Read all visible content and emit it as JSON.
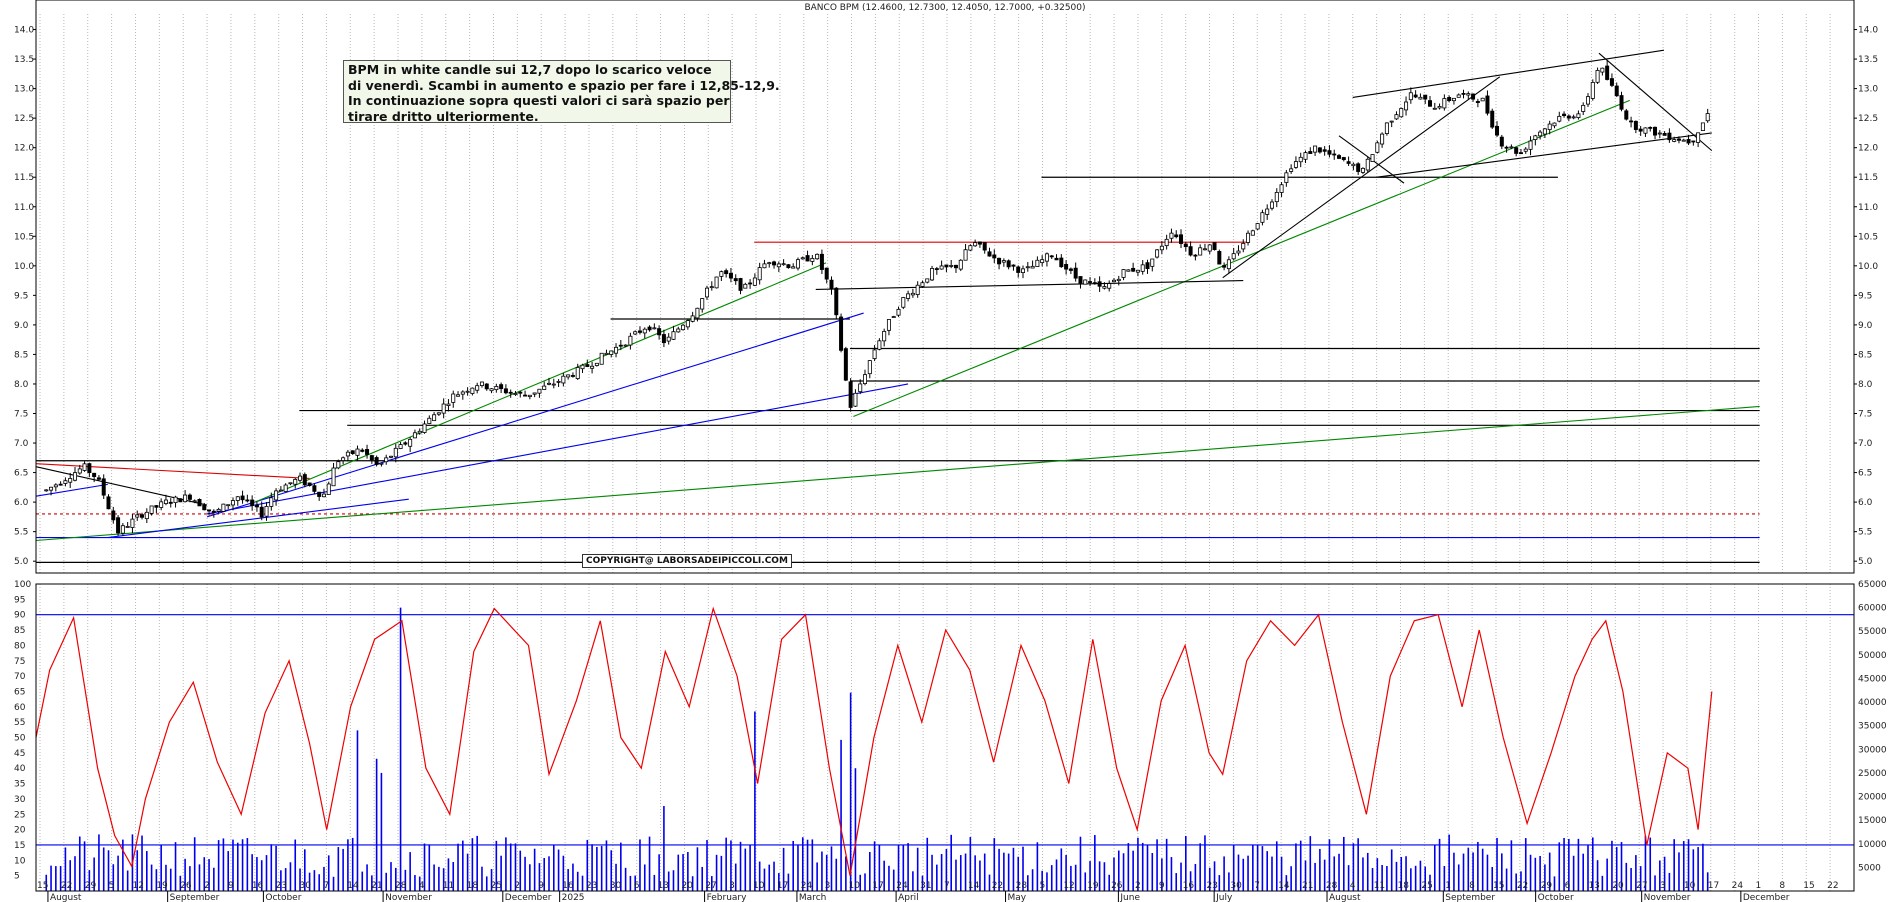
{
  "chart_data": [
    {
      "type": "candlestick",
      "title": "BANCO BPM (12.4600, 12.7300, 12.4050, 12.7000, +0.32500)",
      "ylim": [
        4.8,
        14.5
      ],
      "yticks": [
        "5.0",
        "5.5",
        "6.0",
        "6.5",
        "7.0",
        "7.5",
        "8.0",
        "8.5",
        "9.0",
        "9.5",
        "10.0",
        "10.5",
        "11.0",
        "11.5",
        "12.0",
        "12.5",
        "13.0",
        "13.5",
        "14.0"
      ],
      "grid": "vertical dotted",
      "price_path": [
        [
          "2024-08-15",
          6.2
        ],
        [
          "2024-08-26",
          6.6
        ],
        [
          "2024-08-30",
          6.4
        ],
        [
          "2024-09-05",
          5.5
        ],
        [
          "2024-09-12",
          5.8
        ],
        [
          "2024-09-19",
          6.0
        ],
        [
          "2024-09-26",
          6.1
        ],
        [
          "2024-10-03",
          5.8
        ],
        [
          "2024-10-10",
          6.1
        ],
        [
          "2024-10-17",
          5.8
        ],
        [
          "2024-10-21",
          6.2
        ],
        [
          "2024-10-28",
          6.4
        ],
        [
          "2024-11-04",
          6.1
        ],
        [
          "2024-11-08",
          6.7
        ],
        [
          "2024-11-15",
          6.9
        ],
        [
          "2024-11-20",
          6.6
        ],
        [
          "2024-11-28",
          7.0
        ],
        [
          "2024-12-05",
          7.4
        ],
        [
          "2024-12-12",
          7.8
        ],
        [
          "2024-12-19",
          8.0
        ],
        [
          "2025-01-02",
          7.8
        ],
        [
          "2025-01-10",
          8.0
        ],
        [
          "2025-01-20",
          8.3
        ],
        [
          "2025-01-31",
          8.7
        ],
        [
          "2025-02-07",
          9.0
        ],
        [
          "2025-02-12",
          8.7
        ],
        [
          "2025-02-20",
          9.2
        ],
        [
          "2025-02-28",
          9.9
        ],
        [
          "2025-03-07",
          9.6
        ],
        [
          "2025-03-14",
          10.1
        ],
        [
          "2025-03-21",
          10.0
        ],
        [
          "2025-03-28",
          10.2
        ],
        [
          "2025-04-02",
          9.5
        ],
        [
          "2025-04-07",
          7.6
        ],
        [
          "2025-04-10",
          8.0
        ],
        [
          "2025-04-15",
          8.7
        ],
        [
          "2025-04-22",
          9.4
        ],
        [
          "2025-05-01",
          9.9
        ],
        [
          "2025-05-08",
          10.0
        ],
        [
          "2025-05-13",
          10.4
        ],
        [
          "2025-05-20",
          10.1
        ],
        [
          "2025-05-28",
          9.9
        ],
        [
          "2025-06-05",
          10.2
        ],
        [
          "2025-06-12",
          9.8
        ],
        [
          "2025-06-20",
          9.6
        ],
        [
          "2025-06-26",
          9.9
        ],
        [
          "2025-07-03",
          10.0
        ],
        [
          "2025-07-10",
          10.6
        ],
        [
          "2025-07-16",
          10.2
        ],
        [
          "2025-07-22",
          10.4
        ],
        [
          "2025-07-25",
          9.9
        ],
        [
          "2025-07-31",
          10.4
        ],
        [
          "2025-08-07",
          11.0
        ],
        [
          "2025-08-14",
          11.7
        ],
        [
          "2025-08-21",
          12.0
        ],
        [
          "2025-08-28",
          11.8
        ],
        [
          "2025-09-04",
          11.6
        ],
        [
          "2025-09-11",
          12.4
        ],
        [
          "2025-09-18",
          12.9
        ],
        [
          "2025-09-25",
          12.7
        ],
        [
          "2025-10-02",
          12.9
        ],
        [
          "2025-10-09",
          12.8
        ],
        [
          "2025-10-14",
          12.1
        ],
        [
          "2025-10-20",
          11.9
        ],
        [
          "2025-10-24",
          12.2
        ],
        [
          "2025-10-31",
          12.5
        ],
        [
          "2025-11-07",
          12.6
        ],
        [
          "2025-11-12",
          13.4
        ],
        [
          "2025-11-17",
          12.9
        ],
        [
          "2025-11-21",
          12.4
        ],
        [
          "2025-11-26",
          12.3
        ],
        [
          "2025-12-02",
          12.2
        ],
        [
          "2025-12-09",
          12.1
        ],
        [
          "2025-12-15",
          12.7
        ]
      ],
      "price_line_color": "#111111",
      "horizontal_levels": [
        {
          "y": 4.98,
          "color": "#000000",
          "from": "2024-08-12",
          "to": "2025-12-29"
        },
        {
          "y": 5.4,
          "color": "#0000ee",
          "from": "2024-08-12",
          "to": "2025-12-29"
        },
        {
          "y": 5.8,
          "color": "#cc0000",
          "dashed": true,
          "from": "2024-08-12",
          "to": "2025-12-29"
        },
        {
          "y": 6.7,
          "color": "#000000",
          "from": "2024-08-12",
          "to": "2025-12-29"
        },
        {
          "y": 7.3,
          "color": "#000000",
          "from": "2024-11-11",
          "to": "2025-12-29"
        },
        {
          "y": 7.55,
          "color": "#000000",
          "from": "2024-10-28",
          "to": "2025-12-29"
        },
        {
          "y": 8.05,
          "color": "#000000",
          "from": "2025-04-07",
          "to": "2025-12-29"
        },
        {
          "y": 8.6,
          "color": "#000000",
          "from": "2025-04-07",
          "to": "2025-12-29"
        },
        {
          "y": 9.1,
          "color": "#000000",
          "from": "2025-01-27",
          "to": "2025-04-07"
        },
        {
          "y": 10.4,
          "color": "#dd0000",
          "from": "2025-03-10",
          "to": "2025-08-01"
        },
        {
          "y": 11.5,
          "color": "#000000",
          "from": "2025-06-02",
          "to": "2025-10-31"
        }
      ],
      "trendlines": [
        {
          "from": [
            "2024-08-12",
            5.35
          ],
          "to": [
            "2025-12-29",
            7.62
          ],
          "color": "#008800"
        },
        {
          "from": [
            "2024-08-12",
            6.1
          ],
          "to": [
            "2024-09-02",
            6.3
          ],
          "color": "#0000ee"
        },
        {
          "from": [
            "2024-08-12",
            6.65
          ],
          "to": [
            "2024-10-31",
            6.4
          ],
          "color": "#dd0000"
        },
        {
          "from": [
            "2024-08-12",
            6.6
          ],
          "to": [
            "2024-10-01",
            5.95
          ],
          "color": "#000000"
        },
        {
          "from": [
            "2024-09-02",
            5.4
          ],
          "to": [
            "2024-11-29",
            6.05
          ],
          "color": "#0000ee"
        },
        {
          "from": [
            "2024-10-01",
            5.75
          ],
          "to": [
            "2025-04-11",
            9.2
          ],
          "color": "#0000ee"
        },
        {
          "from": [
            "2024-10-01",
            5.8
          ],
          "to": [
            "2025-04-24",
            8.0
          ],
          "color": "#0000ee"
        },
        {
          "from": [
            "2024-10-15",
            6.0
          ],
          "to": [
            "2025-03-31",
            10.05
          ],
          "color": "#008800"
        },
        {
          "from": [
            "2025-04-08",
            7.45
          ],
          "to": [
            "2025-11-21",
            12.8
          ],
          "color": "#008800"
        },
        {
          "from": [
            "2025-03-28",
            9.6
          ],
          "to": [
            "2025-07-31",
            9.75
          ],
          "color": "#000000"
        },
        {
          "from": [
            "2025-07-25",
            9.8
          ],
          "to": [
            "2025-10-14",
            13.2
          ],
          "color": "#000000"
        },
        {
          "from": [
            "2025-08-28",
            12.2
          ],
          "to": [
            "2025-09-16",
            11.4
          ],
          "color": "#000000"
        },
        {
          "from": [
            "2025-09-01",
            12.85
          ],
          "to": [
            "2025-12-01",
            13.65
          ],
          "color": "#000000"
        },
        {
          "from": [
            "2025-09-08",
            11.5
          ],
          "to": [
            "2025-12-15",
            12.25
          ],
          "color": "#000000"
        },
        {
          "from": [
            "2025-11-12",
            13.6
          ],
          "to": [
            "2025-12-15",
            11.95
          ],
          "color": "#000000"
        }
      ]
    },
    {
      "type": "line+bar",
      "ylim_left": [
        0,
        100
      ],
      "yticks_left": [
        "5",
        "10",
        "15",
        "20",
        "25",
        "30",
        "35",
        "40",
        "45",
        "50",
        "55",
        "60",
        "65",
        "70",
        "75",
        "80",
        "85",
        "90",
        "95",
        "100"
      ],
      "ylim_right": [
        0,
        65000
      ],
      "yticks_right": [
        "5000",
        "10000",
        "15000",
        "20000",
        "25000",
        "30000",
        "35000",
        "40000",
        "45000",
        "50000",
        "55000",
        "60000",
        "65000"
      ],
      "reference_lines": [
        {
          "y": 90,
          "color": "#0000ee"
        },
        {
          "y": 15,
          "color": "#0000ee"
        }
      ],
      "oscillator_color": "#ee0000",
      "oscillator_path": [
        [
          "2024-08-12",
          50
        ],
        [
          "2024-08-16",
          72
        ],
        [
          "2024-08-23",
          89
        ],
        [
          "2024-08-30",
          40
        ],
        [
          "2024-09-04",
          18
        ],
        [
          "2024-09-09",
          8
        ],
        [
          "2024-09-13",
          30
        ],
        [
          "2024-09-20",
          55
        ],
        [
          "2024-09-27",
          68
        ],
        [
          "2024-10-04",
          42
        ],
        [
          "2024-10-11",
          25
        ],
        [
          "2024-10-18",
          58
        ],
        [
          "2024-10-25",
          75
        ],
        [
          "2024-10-31",
          48
        ],
        [
          "2024-11-05",
          20
        ],
        [
          "2024-11-12",
          60
        ],
        [
          "2024-11-19",
          82
        ],
        [
          "2024-11-27",
          88
        ],
        [
          "2024-12-04",
          40
        ],
        [
          "2024-12-11",
          25
        ],
        [
          "2024-12-18",
          78
        ],
        [
          "2024-12-24",
          92
        ],
        [
          "2025-01-03",
          80
        ],
        [
          "2025-01-09",
          38
        ],
        [
          "2025-01-17",
          62
        ],
        [
          "2025-01-24",
          88
        ],
        [
          "2025-01-30",
          50
        ],
        [
          "2025-02-05",
          40
        ],
        [
          "2025-02-12",
          78
        ],
        [
          "2025-02-19",
          60
        ],
        [
          "2025-02-26",
          92
        ],
        [
          "2025-03-05",
          70
        ],
        [
          "2025-03-11",
          35
        ],
        [
          "2025-03-18",
          82
        ],
        [
          "2025-03-25",
          90
        ],
        [
          "2025-04-01",
          40
        ],
        [
          "2025-04-07",
          5
        ],
        [
          "2025-04-14",
          50
        ],
        [
          "2025-04-21",
          80
        ],
        [
          "2025-04-28",
          55
        ],
        [
          "2025-05-05",
          85
        ],
        [
          "2025-05-12",
          72
        ],
        [
          "2025-05-19",
          42
        ],
        [
          "2025-05-27",
          80
        ],
        [
          "2025-06-03",
          62
        ],
        [
          "2025-06-10",
          35
        ],
        [
          "2025-06-17",
          82
        ],
        [
          "2025-06-24",
          40
        ],
        [
          "2025-06-30",
          20
        ],
        [
          "2025-07-07",
          62
        ],
        [
          "2025-07-14",
          80
        ],
        [
          "2025-07-21",
          45
        ],
        [
          "2025-07-25",
          38
        ],
        [
          "2025-08-01",
          75
        ],
        [
          "2025-08-08",
          88
        ],
        [
          "2025-08-15",
          80
        ],
        [
          "2025-08-22",
          90
        ],
        [
          "2025-08-29",
          55
        ],
        [
          "2025-09-05",
          25
        ],
        [
          "2025-09-12",
          70
        ],
        [
          "2025-09-19",
          88
        ],
        [
          "2025-09-26",
          90
        ],
        [
          "2025-10-03",
          60
        ],
        [
          "2025-10-08",
          85
        ],
        [
          "2025-10-15",
          50
        ],
        [
          "2025-10-22",
          22
        ],
        [
          "2025-10-29",
          45
        ],
        [
          "2025-11-05",
          70
        ],
        [
          "2025-11-10",
          82
        ],
        [
          "2025-11-14",
          88
        ],
        [
          "2025-11-19",
          65
        ],
        [
          "2025-11-26",
          15
        ],
        [
          "2025-12-02",
          45
        ],
        [
          "2025-12-08",
          40
        ],
        [
          "2025-12-11",
          20
        ],
        [
          "2025-12-15",
          65
        ]
      ],
      "volume_color": "#0000ee",
      "volume_spikes": [
        [
          "2024-11-27",
          60000
        ],
        [
          "2024-11-20",
          28000
        ],
        [
          "2024-11-14",
          34000
        ],
        [
          "2024-11-21",
          25000
        ],
        [
          "2025-03-10",
          38000
        ],
        [
          "2025-04-04",
          32000
        ],
        [
          "2025-04-07",
          42000
        ],
        [
          "2025-04-09",
          26000
        ],
        [
          "2025-02-12",
          18000
        ],
        [
          "2025-12-12",
          10000
        ]
      ]
    }
  ],
  "x_axis": {
    "day_labels": [
      "15",
      "22",
      "29",
      "5",
      "12",
      "19",
      "26",
      "2",
      "9",
      "16",
      "23",
      "30",
      "7",
      "14",
      "21",
      "28",
      "4",
      "11",
      "18",
      "25",
      "2",
      "9",
      "16",
      "23",
      "30",
      "6",
      "13",
      "20",
      "27",
      "3",
      "10",
      "17",
      "24",
      "3",
      "10",
      "17",
      "24",
      "31",
      "7",
      "14",
      "22",
      "28",
      "5",
      "12",
      "19",
      "26",
      "2",
      "9",
      "16",
      "23",
      "30",
      "7",
      "14",
      "21",
      "28",
      "4",
      "11",
      "18",
      "25",
      "1",
      "8",
      "15",
      "22",
      "29",
      "6",
      "13",
      "20",
      "27",
      "3",
      "10",
      "17",
      "24",
      "1",
      "8",
      "15",
      "22"
    ],
    "month_labels": [
      "August",
      "September",
      "October",
      "November",
      "December",
      "2025",
      "February",
      "March",
      "April",
      "May",
      "June",
      "July",
      "August",
      "September",
      "October",
      "November",
      "December"
    ]
  },
  "annotation": {
    "lines": [
      "BPM in white candle sui 12,7 dopo lo scarico veloce",
      "di venerdì. Scambi in aumento e spazio per fare i 12,85-12,9.",
      "In continuazione sopra questi valori ci sarà spazio per",
      "tirare dritto ulteriormente."
    ]
  },
  "copyright": "COPYRIGHT@ LABORSADEIPICCOLI.COM"
}
